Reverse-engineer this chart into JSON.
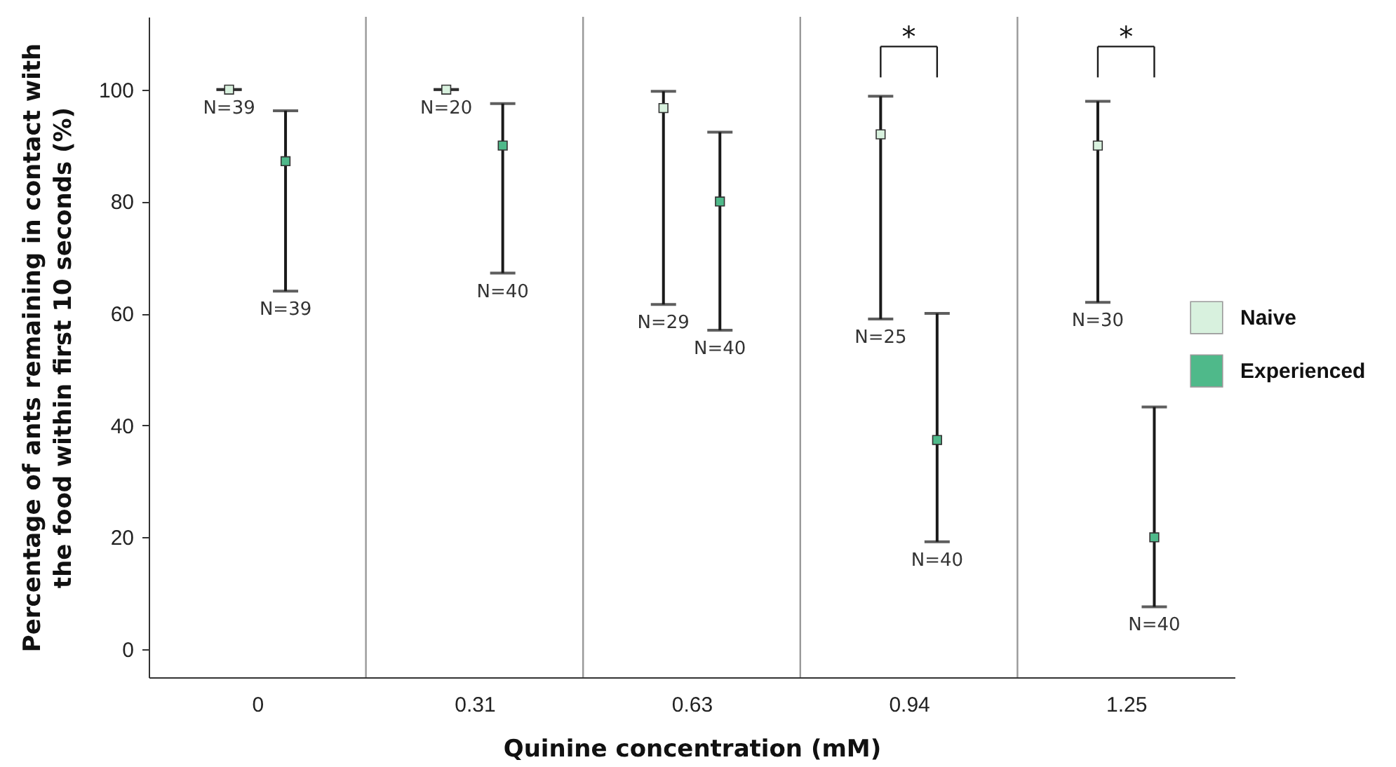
{
  "chart_data": {
    "type": "scatter",
    "xlabel": "Quinine concentration (mM)",
    "ylabel": "Percentage of ants remaining in contact with the food within first 10 seconds (%)",
    "categories": [
      "0",
      "0.31",
      "0.63",
      "0.94",
      "1.25"
    ],
    "series": [
      {
        "name": "Naive",
        "color": "#d8f1de",
        "values": [
          100,
          100,
          96.7,
          92,
          90
        ],
        "errors": [
          [
            100,
            100
          ],
          [
            100,
            100
          ],
          [
            61.6,
            99.7
          ],
          [
            59,
            98.8
          ],
          [
            62,
            97.9
          ]
        ]
      },
      {
        "name": "Experienced",
        "color": "#4fb98a",
        "values": [
          87.2,
          90,
          80,
          37.4,
          20
        ],
        "errors": [
          [
            64,
            96.2
          ],
          [
            67.2,
            97.5
          ],
          [
            57,
            92.4
          ],
          [
            19.2,
            60
          ],
          [
            7.6,
            43.3
          ]
        ]
      }
    ],
    "annotations": [
      "N=39",
      "N=39",
      "N=20",
      "N=40",
      "N=29",
      "N=40",
      "N=25",
      "N=40",
      "N=30",
      "N=40",
      "*",
      "*"
    ],
    "ylim": [
      -5,
      113
    ],
    "yticks": [
      0,
      20,
      40,
      60,
      80,
      100
    ],
    "grid": "x",
    "legend": "right",
    "marker": "square"
  }
}
